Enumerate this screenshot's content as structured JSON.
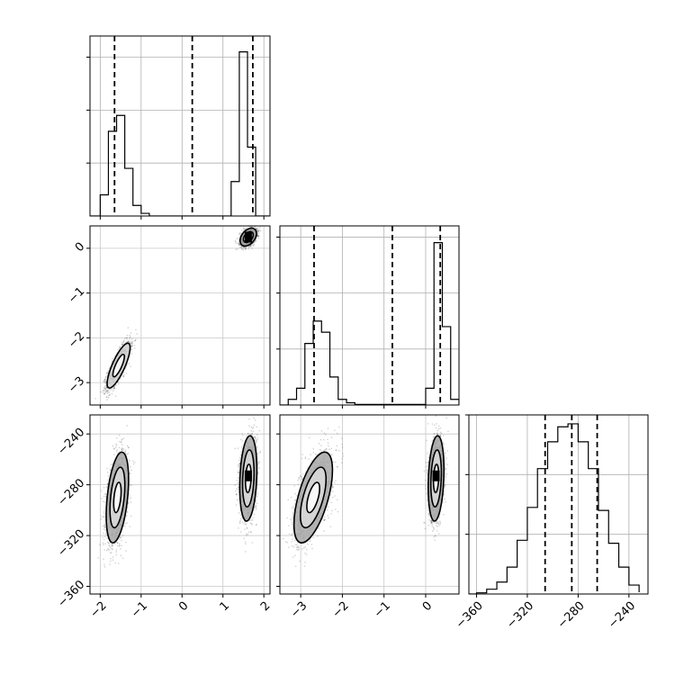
{
  "chart_data": {
    "type": "corner",
    "parameters": [
      "",
      "",
      ""
    ],
    "color": "#000000",
    "grid": true,
    "histograms": [
      {
        "param_index": 0,
        "xlim": [
          -2.25,
          2.15
        ],
        "ylim": [
          0,
          0.34
        ],
        "bin_edges": [
          -2.0,
          -1.8,
          -1.6,
          -1.4,
          -1.2,
          -1.0,
          -0.8,
          -0.6,
          1.2,
          1.4,
          1.6,
          1.8,
          2.0
        ],
        "counts": [
          0.04,
          0.16,
          0.19,
          0.09,
          0.02,
          0.005,
          0.0,
          0.0,
          0.065,
          0.31,
          0.13,
          0.0
        ],
        "quantiles": [
          -1.65,
          0.25,
          1.73
        ]
      },
      {
        "param_index": 1,
        "xlim": [
          -3.5,
          0.8
        ],
        "ylim": [
          0,
          0.32
        ],
        "bin_edges": [
          -3.3,
          -3.1,
          -2.9,
          -2.7,
          -2.5,
          -2.3,
          -2.1,
          -1.9,
          -1.7,
          0.0,
          0.2,
          0.4,
          0.6,
          0.8
        ],
        "counts": [
          0.01,
          0.03,
          0.11,
          0.15,
          0.13,
          0.05,
          0.01,
          0.004,
          0.001,
          0.03,
          0.29,
          0.14,
          0.01
        ],
        "quantiles": [
          -2.68,
          -0.8,
          0.35
        ]
      },
      {
        "param_index": 2,
        "xlim": [
          -366,
          -225
        ],
        "ylim": [
          0,
          0.3
        ],
        "bin_edges": [
          -360,
          -352,
          -344,
          -336,
          -328,
          -320,
          -312,
          -304,
          -296,
          -288,
          -280,
          -272,
          -264,
          -256,
          -248,
          -240,
          -232
        ],
        "counts": [
          0.002,
          0.008,
          0.02,
          0.045,
          0.09,
          0.145,
          0.21,
          0.255,
          0.28,
          0.285,
          0.255,
          0.21,
          0.14,
          0.085,
          0.045,
          0.015,
          0.003
        ],
        "quantiles": [
          -306,
          -285,
          -265
        ]
      }
    ],
    "scatter_panels": [
      {
        "x_param": 0,
        "y_param": 1,
        "xlim": [
          -2.25,
          2.15
        ],
        "ylim": [
          -3.5,
          0.5
        ],
        "clusters": [
          {
            "cx": -1.55,
            "cy": -2.62,
            "sx": 0.14,
            "sy": 0.25,
            "rho": 0.8,
            "n": 1600
          },
          {
            "cx": 1.62,
            "cy": 0.25,
            "sx": 0.1,
            "sy": 0.1,
            "rho": 0.4,
            "n": 1200
          }
        ],
        "contours": [
          {
            "cx": -1.55,
            "cy": -2.62,
            "sx": 0.14,
            "sy": 0.25,
            "rho": 0.8,
            "levels": [
              1.0,
              2.0
            ]
          },
          {
            "cx": 1.62,
            "cy": 0.25,
            "sx": 0.1,
            "sy": 0.1,
            "rho": 0.4,
            "levels": [
              0.6,
              1.2,
              2.0
            ]
          }
        ],
        "cores": [
          {
            "x": 1.62,
            "y": 0.25
          }
        ]
      },
      {
        "x_param": 0,
        "y_param": 2,
        "xlim": [
          -2.25,
          2.15
        ],
        "ylim": [
          -366,
          -225
        ],
        "clusters": [
          {
            "cx": -1.58,
            "cy": -290,
            "sx": 0.13,
            "sy": 17,
            "rho": 0.4,
            "n": 1600
          },
          {
            "cx": 1.62,
            "cy": -275,
            "sx": 0.1,
            "sy": 16,
            "rho": 0.2,
            "n": 1500
          }
        ],
        "contours": [
          {
            "cx": -1.58,
            "cy": -290,
            "sx": 0.13,
            "sy": 17,
            "rho": 0.4,
            "levels": [
              0.7,
              1.4,
              2.1
            ]
          },
          {
            "cx": 1.62,
            "cy": -275,
            "sx": 0.1,
            "sy": 16,
            "rho": 0.2,
            "levels": [
              0.7,
              1.4,
              2.1
            ]
          }
        ],
        "cores": [
          {
            "x": 1.62,
            "y": -273
          }
        ]
      },
      {
        "x_param": 1,
        "y_param": 2,
        "xlim": [
          -3.5,
          0.8
        ],
        "ylim": [
          -366,
          -225
        ],
        "clusters": [
          {
            "cx": -2.7,
            "cy": -290,
            "sx": 0.22,
            "sy": 17,
            "rho": 0.6,
            "n": 1600
          },
          {
            "cx": 0.25,
            "cy": -275,
            "sx": 0.09,
            "sy": 16,
            "rho": 0.2,
            "n": 1500
          }
        ],
        "contours": [
          {
            "cx": -2.7,
            "cy": -290,
            "sx": 0.22,
            "sy": 17,
            "rho": 0.6,
            "levels": [
              0.7,
              1.4,
              2.1
            ]
          },
          {
            "cx": 0.25,
            "cy": -275,
            "sx": 0.09,
            "sy": 16,
            "rho": 0.2,
            "levels": [
              0.7,
              1.4,
              2.1
            ]
          }
        ],
        "cores": [
          {
            "x": 0.25,
            "y": -273
          }
        ]
      }
    ],
    "ticks": {
      "p0": [
        {
          "v": -2,
          "label": "−2"
        },
        {
          "v": -1,
          "label": "−1"
        },
        {
          "v": 0,
          "label": "0"
        },
        {
          "v": 1,
          "label": "1"
        },
        {
          "v": 2,
          "label": "2"
        }
      ],
      "p1": [
        {
          "v": -3,
          "label": "−3"
        },
        {
          "v": -2,
          "label": "−2"
        },
        {
          "v": -1,
          "label": "−1"
        },
        {
          "v": 0,
          "label": "0"
        }
      ],
      "p2": [
        {
          "v": -360,
          "label": "−360"
        },
        {
          "v": -320,
          "label": "−320"
        },
        {
          "v": -280,
          "label": "−280"
        },
        {
          "v": -240,
          "label": "−240"
        }
      ],
      "hist0_y": [
        0.1,
        0.2,
        0.3
      ],
      "hist1_y": [
        0.1,
        0.2,
        0.3
      ],
      "hist2_y": [
        0.1,
        0.2,
        0.3
      ]
    }
  }
}
